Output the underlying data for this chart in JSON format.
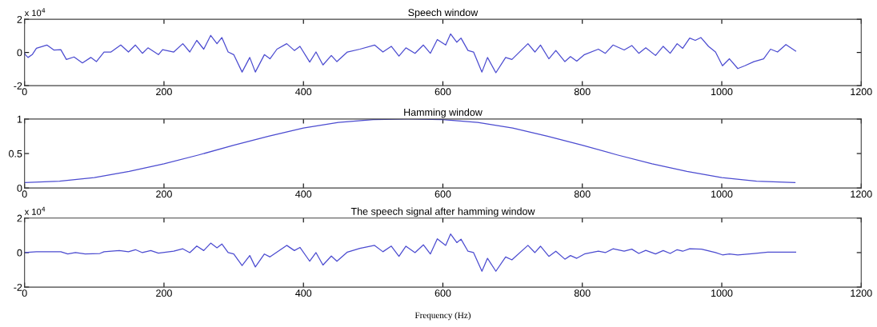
{
  "chart_data": [
    {
      "type": "line",
      "title": "Speech window",
      "annotations": [
        "x 10$^{4}$"
      ],
      "xlim": [
        0,
        1200
      ],
      "xticks": [
        0,
        200,
        400,
        600,
        800,
        1000,
        1200
      ],
      "ylim": [
        -2,
        2
      ],
      "yticks": [
        -2,
        0,
        2
      ],
      "grid": false,
      "legend": false,
      "series": [
        {
          "color": "#4b4bd0",
          "x": [
            0,
            1,
            5,
            11,
            17,
            32,
            42,
            52,
            60,
            71,
            83,
            95,
            103,
            114,
            124,
            138,
            149,
            159,
            169,
            177,
            192,
            198,
            214,
            227,
            237,
            247,
            257,
            267,
            276,
            283,
            292,
            300,
            312,
            323,
            331,
            344,
            352,
            362,
            376,
            387,
            395,
            409,
            418,
            428,
            440,
            448,
            463,
            481,
            502,
            514,
            526,
            537,
            547,
            560,
            572,
            582,
            592,
            604,
            611,
            620,
            626,
            636,
            644,
            656,
            664,
            676,
            690,
            699,
            722,
            732,
            740,
            752,
            762,
            775,
            783,
            792,
            803,
            823,
            833,
            844,
            860,
            871,
            881,
            891,
            905,
            916,
            926,
            936,
            944,
            954,
            962,
            970,
            981,
            991,
            1001,
            1011,
            1023,
            1033,
            1046,
            1060,
            1070,
            1080,
            1092,
            1106
          ],
          "values": [
            0,
            -0.13,
            -0.3,
            -0.13,
            0.25,
            0.45,
            0.15,
            0.17,
            -0.42,
            -0.27,
            -0.63,
            -0.3,
            -0.55,
            0.03,
            0.03,
            0.45,
            0.03,
            0.45,
            -0.05,
            0.28,
            -0.13,
            0.17,
            0.03,
            0.53,
            0.03,
            0.73,
            0.2,
            1.03,
            0.53,
            0.9,
            0.03,
            -0.13,
            -1.18,
            -0.3,
            -1.18,
            -0.13,
            -0.38,
            0.2,
            0.53,
            0.12,
            0.37,
            -0.58,
            0.03,
            -0.75,
            -0.18,
            -0.55,
            0.03,
            0.2,
            0.45,
            0.03,
            0.37,
            -0.22,
            0.28,
            -0.05,
            0.45,
            -0.05,
            0.78,
            0.45,
            1.12,
            0.62,
            0.87,
            0.12,
            0.03,
            -1.18,
            -0.3,
            -1.22,
            -0.3,
            -0.42,
            0.53,
            0.03,
            0.45,
            -0.38,
            0.12,
            -0.55,
            -0.25,
            -0.52,
            -0.13,
            0.2,
            -0.05,
            0.45,
            0.15,
            0.42,
            -0.05,
            0.28,
            -0.18,
            0.37,
            -0.05,
            0.53,
            0.25,
            0.87,
            0.73,
            0.9,
            0.37,
            0.03,
            -0.8,
            -0.38,
            -0.97,
            -0.8,
            -0.55,
            -0.38,
            0.2,
            0.03,
            0.48,
            0.08
          ]
        }
      ]
    },
    {
      "type": "line",
      "title": "Hamming window",
      "xlim": [
        0,
        1200
      ],
      "xticks": [
        0,
        200,
        400,
        600,
        800,
        1000,
        1200
      ],
      "ylim": [
        0,
        1
      ],
      "yticks": [
        0,
        0.5,
        1
      ],
      "grid": false,
      "legend": false,
      "series": [
        {
          "color": "#4b4bd0",
          "x": [
            0,
            50,
            100,
            150,
            200,
            250,
            300,
            350,
            400,
            450,
            500,
            552,
            600,
            650,
            700,
            750,
            800,
            850,
            900,
            950,
            1000,
            1050,
            1105
          ],
          "values": [
            0.08,
            0.1,
            0.15,
            0.24,
            0.35,
            0.48,
            0.62,
            0.75,
            0.87,
            0.95,
            0.99,
            1.0,
            0.99,
            0.95,
            0.87,
            0.75,
            0.62,
            0.48,
            0.35,
            0.24,
            0.15,
            0.1,
            0.08
          ]
        }
      ]
    },
    {
      "type": "line",
      "title": "The speech signal after hamming window",
      "xlabel": "Frequency (Hz)",
      "annotations": [
        "x 10$^{4}$"
      ],
      "xlim": [
        0,
        1200
      ],
      "xticks": [
        0,
        200,
        400,
        600,
        800,
        1000,
        1200
      ],
      "ylim": [
        -2,
        2
      ],
      "yticks": [
        -2,
        0,
        2
      ],
      "grid": false,
      "legend": false,
      "series": [
        {
          "color": "#4b4bd0",
          "x": [
            0,
            17,
            52,
            62,
            73,
            87,
            108,
            114,
            136,
            149,
            159,
            169,
            181,
            192,
            214,
            227,
            237,
            247,
            257,
            267,
            276,
            283,
            292,
            300,
            312,
            323,
            331,
            344,
            352,
            376,
            387,
            395,
            409,
            418,
            428,
            440,
            448,
            463,
            481,
            502,
            514,
            526,
            537,
            547,
            560,
            572,
            582,
            592,
            604,
            611,
            620,
            626,
            636,
            644,
            656,
            664,
            676,
            690,
            699,
            722,
            732,
            740,
            752,
            762,
            775,
            783,
            792,
            803,
            823,
            833,
            844,
            860,
            871,
            881,
            891,
            905,
            916,
            926,
            936,
            944,
            954,
            971,
            991,
            1001,
            1011,
            1023,
            1046,
            1066,
            1106
          ],
          "values": [
            0,
            0.05,
            0.05,
            -0.08,
            0,
            -0.08,
            -0.05,
            0.05,
            0.12,
            0.05,
            0.17,
            0,
            0.12,
            -0.03,
            0.08,
            0.22,
            0,
            0.38,
            0.12,
            0.55,
            0.28,
            0.5,
            0,
            -0.08,
            -0.75,
            -0.17,
            -0.83,
            -0.08,
            -0.25,
            0.42,
            0.12,
            0.3,
            -0.5,
            0,
            -0.72,
            -0.2,
            -0.5,
            0.03,
            0.25,
            0.42,
            0.05,
            0.38,
            -0.22,
            0.37,
            0,
            0.45,
            -0.08,
            0.8,
            0.42,
            1.08,
            0.58,
            0.78,
            0.08,
            0,
            -1.08,
            -0.33,
            -1.08,
            -0.25,
            -0.42,
            0.42,
            0,
            0.37,
            -0.22,
            0.08,
            -0.38,
            -0.17,
            -0.33,
            -0.08,
            0.08,
            0,
            0.22,
            0.08,
            0.2,
            -0.05,
            0.13,
            -0.08,
            0.12,
            -0.05,
            0.17,
            0.08,
            0.22,
            0.2,
            0,
            -0.13,
            -0.08,
            -0.13,
            -0.05,
            0.03,
            0.03
          ]
        }
      ]
    }
  ]
}
